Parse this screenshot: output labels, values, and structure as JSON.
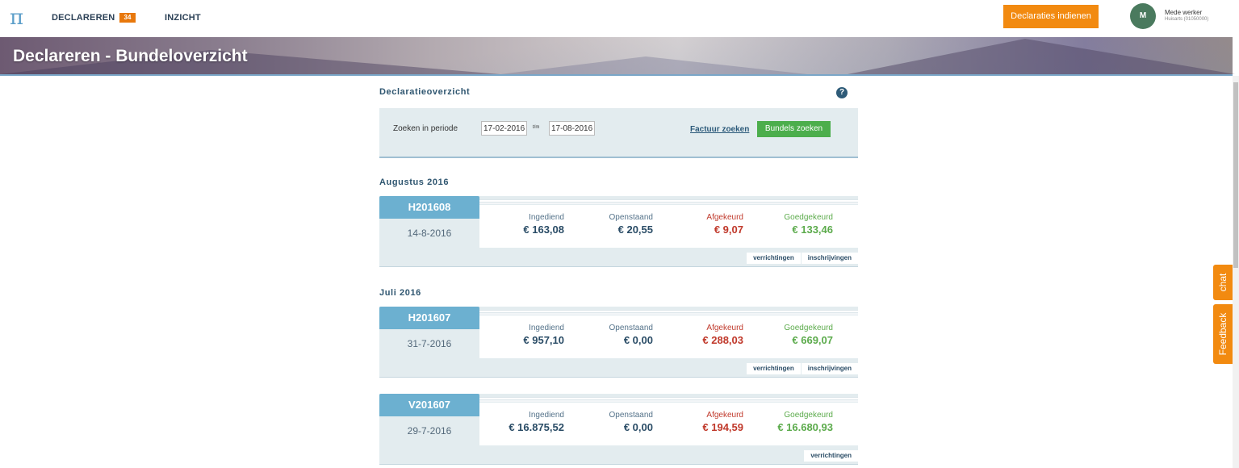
{
  "nav": {
    "logo": "π",
    "declareren": "DECLAREREN",
    "badge": "34",
    "inzicht": "INZICHT",
    "submit": "Declaraties indienen",
    "user_initial": "M",
    "user_name": "Mede werker",
    "user_role": "Huisarts (01050000)"
  },
  "banner": {
    "title": "Declareren - Bundeloverzicht"
  },
  "overview": {
    "title": "Declaratieoverzicht",
    "help": "?",
    "search_label": "Zoeken in periode",
    "date_from": "17-02-2016",
    "date_sep": "t/m",
    "date_to": "17-08-2016",
    "factuur_link": "Factuur zoeken",
    "bundel_button": "Bundels zoeken"
  },
  "labels": {
    "ingediend": "Ingediend",
    "openstaand": "Openstaand",
    "afgekeurd": "Afgekeurd",
    "goedgekeurd": "Goedgekeurd",
    "verrichtingen": "verrichtingen",
    "inschrijvingen": "inschrijvingen"
  },
  "months": [
    "Augustus 2016",
    "Juli 2016"
  ],
  "bundles": [
    {
      "code": "H201608",
      "date": "14-8-2016",
      "ingediend": "€ 163,08",
      "openstaand": "€ 20,55",
      "afgekeurd": "€ 9,07",
      "goedgekeurd": "€ 133,46"
    },
    {
      "code": "H201607",
      "date": "31-7-2016",
      "ingediend": "€ 957,10",
      "openstaand": "€ 0,00",
      "afgekeurd": "€ 288,03",
      "goedgekeurd": "€ 669,07"
    },
    {
      "code": "V201607",
      "date": "29-7-2016",
      "ingediend": "€ 16.875,52",
      "openstaand": "€ 0,00",
      "afgekeurd": "€ 194,59",
      "goedgekeurd": "€ 16.680,93"
    }
  ],
  "side_tabs": {
    "chat": "chat",
    "feedback": "Feedback"
  },
  "colors": {
    "accent_orange": "#f28a10",
    "tab_blue": "#6cb0d0",
    "green": "#4cae4c",
    "red": "#c0392b"
  }
}
